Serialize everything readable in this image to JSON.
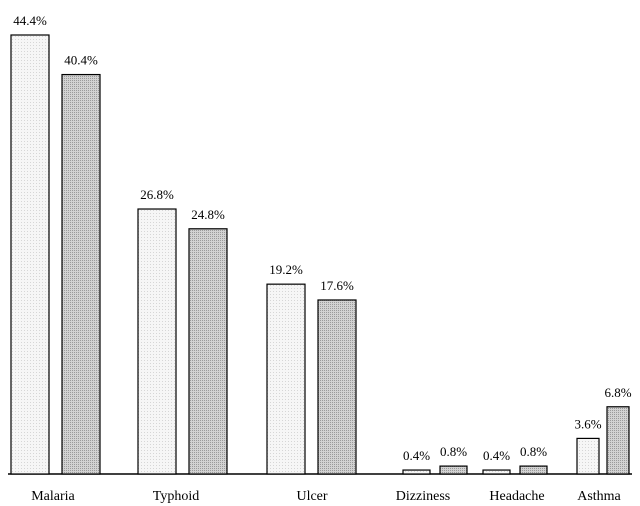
{
  "chart_data": {
    "type": "bar",
    "categories": [
      "Malaria",
      "Typhoid",
      "Ulcer",
      "Dizziness",
      "Headache",
      "Asthma"
    ],
    "series": [
      {
        "values": [
          44.4,
          26.8,
          19.2,
          0.4,
          0.4,
          3.6
        ],
        "labels": [
          "44.4%",
          "26.8%",
          "19.2%",
          "0.4%",
          "0.4%",
          "3.6%"
        ],
        "color": "#f4f4f4"
      },
      {
        "values": [
          40.4,
          24.8,
          17.6,
          0.8,
          0.8,
          6.8
        ],
        "labels": [
          "40.4%",
          "24.8%",
          "17.6%",
          "0.8%",
          "0.8%",
          "6.8%"
        ],
        "color": "#c8c8c8"
      }
    ],
    "ylim": [
      0,
      44.4
    ],
    "grid": false,
    "title": "",
    "xlabel": "",
    "ylabel": ""
  }
}
